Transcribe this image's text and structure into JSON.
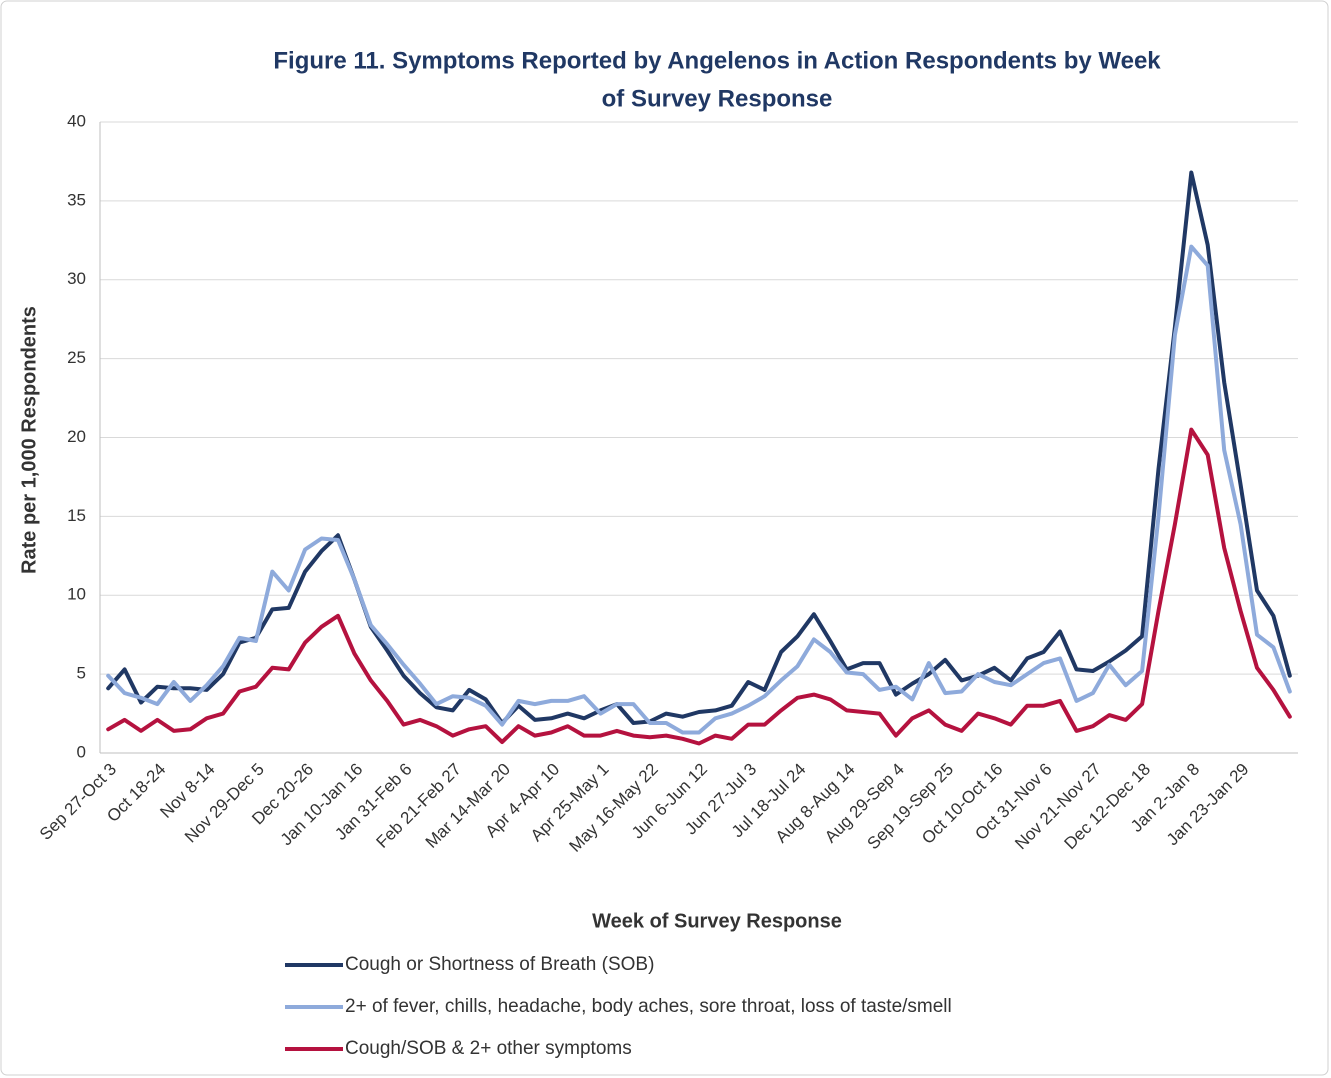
{
  "chart_data": {
    "type": "line",
    "title": [
      "Figure 11. Symptoms Reported by Angelenos in Action Respondents by Week",
      "of Survey Response"
    ],
    "x_label": "Week of Survey Response",
    "y_label": "Rate per 1,000 Respondents",
    "categories": [
      "Sep 27-Oct 3",
      null,
      null,
      "Oct 18-24",
      null,
      null,
      "Nov 8-14",
      null,
      null,
      "Nov 29-Dec 5",
      null,
      null,
      "Dec 20-26",
      null,
      null,
      "Jan 10-Jan 16",
      null,
      null,
      "Jan 31-Feb 6",
      null,
      null,
      "Feb 21-Feb 27",
      null,
      null,
      "Mar 14-Mar 20",
      null,
      null,
      "Apr 4-Apr 10",
      null,
      null,
      "Apr 25-May 1",
      null,
      null,
      "May 16-May 22",
      null,
      null,
      "Jun 6-Jun 12",
      null,
      null,
      "Jun 27-Jul 3",
      null,
      null,
      "Jul 18-Jul 24",
      null,
      null,
      "Aug 8-Aug 14",
      null,
      null,
      "Aug 29-Sep 4",
      null,
      null,
      "Sep 19-Sep 25",
      null,
      null,
      "Oct 10-Oct 16",
      null,
      null,
      "Oct 31-Nov 6",
      null,
      null,
      "Nov 21-Nov 27",
      null,
      null,
      "Dec 12-Dec 18",
      null,
      null,
      "Jan 2-Jan 8",
      null,
      null,
      "Jan 23-Jan 29",
      null,
      null,
      null
    ],
    "series": [
      {
        "name": "Cough or Shortness of Breath (SOB)",
        "color": "#203864",
        "values": [
          4.1,
          5.3,
          3.2,
          4.2,
          4.1,
          4.1,
          4.0,
          5.0,
          7.0,
          7.3,
          9.1,
          9.2,
          11.5,
          12.8,
          13.8,
          11.0,
          8.0,
          6.5,
          4.9,
          3.8,
          2.9,
          2.7,
          4.0,
          3.4,
          1.9,
          3.0,
          2.1,
          2.2,
          2.5,
          2.2,
          2.7,
          3.1,
          1.9,
          2.0,
          2.5,
          2.3,
          2.6,
          2.7,
          3.0,
          4.5,
          4.0,
          6.4,
          7.4,
          8.8,
          7.1,
          5.3,
          5.7,
          5.7,
          3.7,
          4.4,
          5.0,
          5.9,
          4.6,
          4.9,
          5.4,
          4.6,
          6.0,
          6.4,
          7.7,
          5.3,
          5.2,
          5.8,
          6.5,
          7.4,
          18.0,
          27.0,
          36.8,
          32.2,
          23.5,
          17.0,
          10.3,
          8.7,
          4.9
        ]
      },
      {
        "name": "2+ of fever, chills, headache, body aches, sore throat, loss of taste/smell",
        "color": "#8eaadb",
        "values": [
          4.9,
          3.8,
          3.5,
          3.1,
          4.5,
          3.3,
          4.3,
          5.5,
          7.3,
          7.1,
          11.5,
          10.3,
          12.9,
          13.6,
          13.5,
          11.0,
          8.1,
          6.9,
          5.6,
          4.4,
          3.1,
          3.6,
          3.5,
          3.0,
          1.8,
          3.3,
          3.1,
          3.3,
          3.3,
          3.6,
          2.5,
          3.1,
          3.1,
          1.9,
          1.9,
          1.3,
          1.3,
          2.2,
          2.5,
          3.0,
          3.6,
          4.6,
          5.5,
          7.2,
          6.4,
          5.1,
          5.0,
          4.0,
          4.2,
          3.4,
          5.7,
          3.8,
          3.9,
          5.0,
          4.5,
          4.3,
          5.0,
          5.7,
          6.0,
          3.3,
          3.8,
          5.6,
          4.3,
          5.2,
          15.0,
          26.5,
          32.1,
          30.9,
          19.2,
          14.5,
          7.5,
          6.7,
          3.9
        ]
      },
      {
        "name": "Cough/SOB & 2+ other symptoms",
        "color": "#b5123f",
        "values": [
          1.5,
          2.1,
          1.4,
          2.1,
          1.4,
          1.5,
          2.2,
          2.5,
          3.9,
          4.2,
          5.4,
          5.3,
          7.0,
          8.0,
          8.7,
          6.3,
          4.6,
          3.3,
          1.8,
          2.1,
          1.7,
          1.1,
          1.5,
          1.7,
          0.7,
          1.7,
          1.1,
          1.3,
          1.7,
          1.1,
          1.1,
          1.4,
          1.1,
          1.0,
          1.1,
          0.9,
          0.6,
          1.1,
          0.9,
          1.8,
          1.8,
          2.7,
          3.5,
          3.7,
          3.4,
          2.7,
          2.6,
          2.5,
          1.1,
          2.2,
          2.7,
          1.8,
          1.4,
          2.5,
          2.2,
          1.8,
          3.0,
          3.0,
          3.3,
          1.4,
          1.7,
          2.4,
          2.1,
          3.1,
          9.0,
          14.5,
          20.5,
          18.9,
          13.0,
          9.0,
          5.4,
          4.0,
          2.3
        ]
      }
    ],
    "ylim": [
      0,
      40
    ],
    "yticks": [
      0,
      5,
      10,
      15,
      20,
      25,
      30,
      35,
      40
    ],
    "grid": true
  }
}
